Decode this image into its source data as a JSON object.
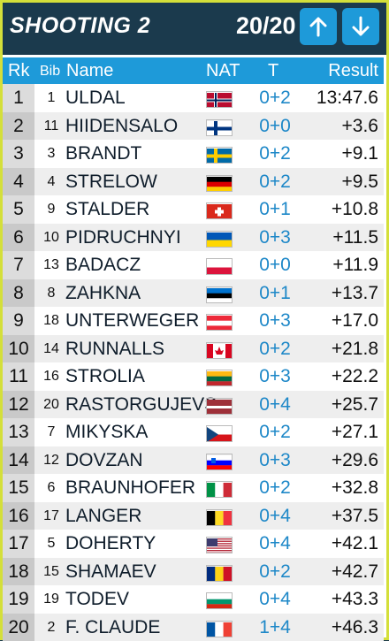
{
  "header": {
    "title": "SHOOTING 2",
    "counter": "20/20",
    "up_icon": "arrow-up-icon",
    "down_icon": "arrow-down-icon"
  },
  "columns": {
    "rank": "Rk",
    "bib": "Bib",
    "name": "Name",
    "nat": "NAT",
    "shooting": "T",
    "result": "Result"
  },
  "colors": {
    "header_bg": "#1b3a4d",
    "accent_border": "#d4df3a",
    "column_header_bg": "#1e9ad9",
    "shooting_text": "#1e88c8"
  },
  "rows": [
    {
      "rank": "1",
      "bib": "1",
      "name": "ULDAL",
      "nat": "NOR",
      "shooting": "0+2",
      "result": "13:47.6"
    },
    {
      "rank": "2",
      "bib": "11",
      "name": "HIIDENSALO",
      "nat": "FIN",
      "shooting": "0+0",
      "result": "+3.6"
    },
    {
      "rank": "3",
      "bib": "3",
      "name": "BRANDT",
      "nat": "SWE",
      "shooting": "0+2",
      "result": "+9.1"
    },
    {
      "rank": "4",
      "bib": "4",
      "name": "STRELOW",
      "nat": "GER",
      "shooting": "0+2",
      "result": "+9.5"
    },
    {
      "rank": "5",
      "bib": "9",
      "name": "STALDER",
      "nat": "SUI",
      "shooting": "0+1",
      "result": "+10.8"
    },
    {
      "rank": "6",
      "bib": "10",
      "name": "PIDRUCHNYI",
      "nat": "UKR",
      "shooting": "0+3",
      "result": "+11.5"
    },
    {
      "rank": "7",
      "bib": "13",
      "name": "BADACZ",
      "nat": "POL",
      "shooting": "0+0",
      "result": "+11.9"
    },
    {
      "rank": "8",
      "bib": "8",
      "name": "ZAHKNA",
      "nat": "EST",
      "shooting": "0+1",
      "result": "+13.7"
    },
    {
      "rank": "9",
      "bib": "18",
      "name": "UNTERWEGER",
      "nat": "AUT",
      "shooting": "0+3",
      "result": "+17.0"
    },
    {
      "rank": "10",
      "bib": "14",
      "name": "RUNNALLS",
      "nat": "CAN",
      "shooting": "0+2",
      "result": "+21.8"
    },
    {
      "rank": "11",
      "bib": "16",
      "name": "STROLIA",
      "nat": "LTU",
      "shooting": "0+3",
      "result": "+22.2"
    },
    {
      "rank": "12",
      "bib": "20",
      "name": "RASTORGUJEVS",
      "nat": "LAT",
      "shooting": "0+4",
      "result": "+25.7"
    },
    {
      "rank": "13",
      "bib": "7",
      "name": "MIKYSKA",
      "nat": "CZE",
      "shooting": "0+2",
      "result": "+27.1"
    },
    {
      "rank": "14",
      "bib": "12",
      "name": "DOVZAN",
      "nat": "SLO",
      "shooting": "0+3",
      "result": "+29.6"
    },
    {
      "rank": "15",
      "bib": "6",
      "name": "BRAUNHOFER",
      "nat": "ITA",
      "shooting": "0+2",
      "result": "+32.8"
    },
    {
      "rank": "16",
      "bib": "17",
      "name": "LANGER",
      "nat": "BEL",
      "shooting": "0+4",
      "result": "+37.5"
    },
    {
      "rank": "17",
      "bib": "5",
      "name": "DOHERTY",
      "nat": "USA",
      "shooting": "0+4",
      "result": "+42.1"
    },
    {
      "rank": "18",
      "bib": "15",
      "name": "SHAMAEV",
      "nat": "ROU",
      "shooting": "0+2",
      "result": "+42.7"
    },
    {
      "rank": "19",
      "bib": "19",
      "name": "TODEV",
      "nat": "BUL",
      "shooting": "0+4",
      "result": "+43.3"
    },
    {
      "rank": "20",
      "bib": "2",
      "name": "F. CLAUDE",
      "nat": "FRA",
      "shooting": "1+4",
      "result": "+46.3"
    }
  ]
}
